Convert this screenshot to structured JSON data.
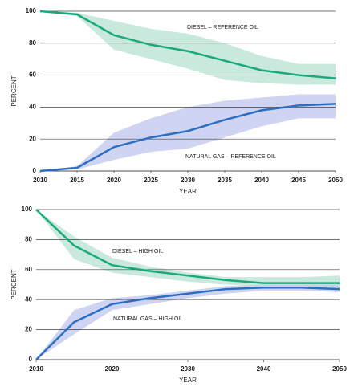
{
  "chart_data": [
    {
      "type": "line",
      "x_label": "YEAR",
      "y_label": "PERCENT",
      "x": [
        2010,
        2015,
        2020,
        2025,
        2030,
        2035,
        2040,
        2045,
        2050
      ],
      "xlim": [
        2010,
        2050
      ],
      "xticks": [
        2010,
        2015,
        2020,
        2025,
        2030,
        2035,
        2040,
        2045,
        2050
      ],
      "ylim": [
        0,
        100
      ],
      "yticks": [
        0,
        20,
        40,
        60,
        80,
        100
      ],
      "grid": true,
      "series": [
        {
          "name": "DIESEL – REFERENCE OIL",
          "color": "#1aa97e",
          "band_color": "#bfe5d6",
          "values": [
            100,
            98,
            85,
            79,
            75,
            69,
            63,
            60,
            58
          ],
          "lower": [
            100,
            97,
            76,
            70,
            64,
            57,
            55,
            54,
            54
          ],
          "upper": [
            100,
            99,
            94,
            89,
            86,
            80,
            72,
            67,
            67
          ]
        },
        {
          "name": "NATURAL GAS – REFERENCE OIL",
          "color": "#2e6ec0",
          "band_color": "#c6cdef",
          "values": [
            0,
            2,
            15,
            21,
            25,
            32,
            38,
            41,
            42
          ],
          "lower": [
            0,
            1,
            7,
            12,
            14,
            21,
            28,
            33,
            33
          ],
          "upper": [
            0,
            3,
            24,
            33,
            40,
            44,
            46,
            48,
            48
          ]
        }
      ]
    },
    {
      "type": "line",
      "x_label": "YEAR",
      "y_label": "PERCENT",
      "x": [
        2010,
        2015,
        2020,
        2025,
        2030,
        2035,
        2040,
        2045,
        2050
      ],
      "xlim": [
        2010,
        2050
      ],
      "xticks": [
        2010,
        2020,
        2030,
        2040,
        2050
      ],
      "ylim": [
        0,
        100
      ],
      "yticks": [
        0,
        20,
        40,
        60,
        80,
        100
      ],
      "grid": true,
      "series": [
        {
          "name": "DIESEL – HIGH OIL",
          "color": "#1aa97e",
          "band_color": "#bfe5d6",
          "values": [
            100,
            76,
            63,
            59,
            56,
            53,
            51,
            51,
            51
          ],
          "lower": [
            100,
            67,
            58,
            55,
            52,
            50,
            49,
            48,
            47
          ],
          "upper": [
            100,
            82,
            68,
            62,
            58,
            55,
            55,
            55,
            56
          ]
        },
        {
          "name": "NATURAL GAS – HIGH OIL",
          "color": "#2e6ec0",
          "band_color": "#c6cdef",
          "values": [
            0,
            25,
            37,
            41,
            44,
            47,
            48,
            48,
            47
          ],
          "lower": [
            0,
            17,
            33,
            37,
            41,
            44,
            46,
            46,
            45
          ],
          "upper": [
            0,
            33,
            41,
            43,
            46,
            49,
            50,
            50,
            50
          ]
        }
      ]
    }
  ]
}
